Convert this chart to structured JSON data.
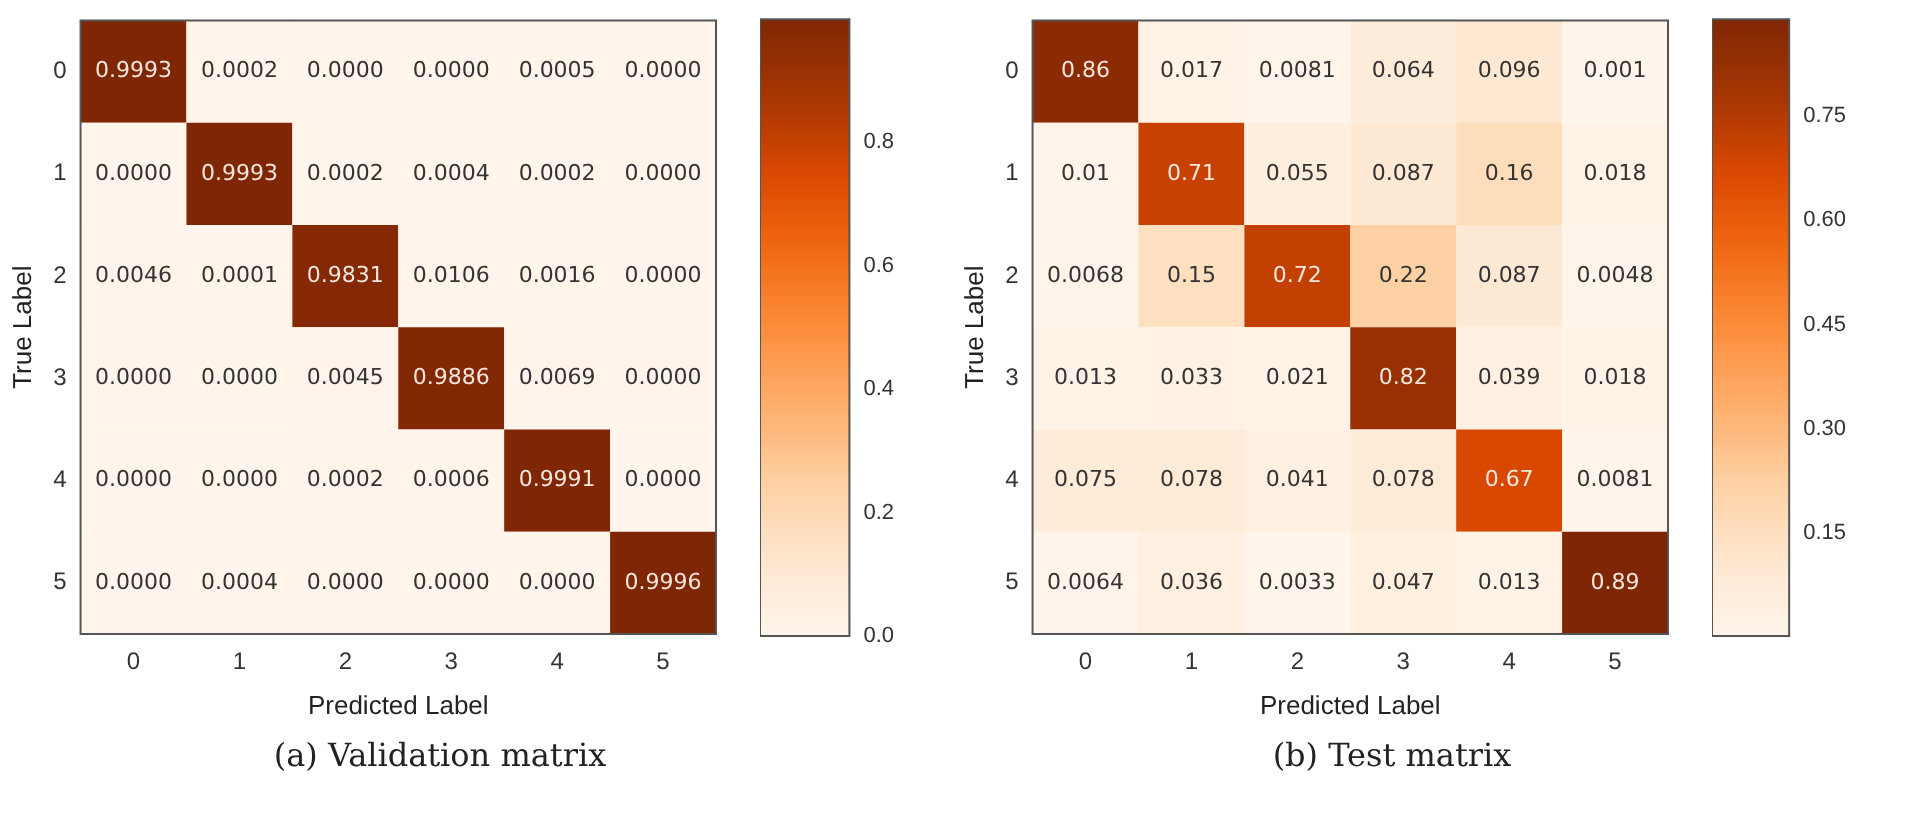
{
  "chart_data": [
    {
      "type": "heatmap",
      "xlabel": "Predicted Label",
      "ylabel": "True Label",
      "categories": [
        "0",
        "1",
        "2",
        "3",
        "4",
        "5"
      ],
      "y_categories": [
        "0",
        "1",
        "2",
        "3",
        "4",
        "5"
      ],
      "cells": [
        [
          0.9993,
          0.0002,
          0.0,
          0.0,
          0.0005,
          0.0
        ],
        [
          0.0,
          0.9993,
          0.0002,
          0.0004,
          0.0002,
          0.0
        ],
        [
          0.0046,
          0.0001,
          0.9831,
          0.0106,
          0.0016,
          0.0
        ],
        [
          0.0,
          0.0,
          0.0045,
          0.9886,
          0.0069,
          0.0
        ],
        [
          0.0,
          0.0,
          0.0002,
          0.0006,
          0.9991,
          0.0
        ],
        [
          0.0,
          0.0004,
          0.0,
          0.0,
          0.0,
          0.9996
        ]
      ],
      "cell_labels": [
        [
          "0.9993",
          "0.0002",
          "0.0000",
          "0.0000",
          "0.0005",
          "0.0000"
        ],
        [
          "0.0000",
          "0.9993",
          "0.0002",
          "0.0004",
          "0.0002",
          "0.0000"
        ],
        [
          "0.0046",
          "0.0001",
          "0.9831",
          "0.0106",
          "0.0016",
          "0.0000"
        ],
        [
          "0.0000",
          "0.0000",
          "0.0045",
          "0.9886",
          "0.0069",
          "0.0000"
        ],
        [
          "0.0000",
          "0.0000",
          "0.0002",
          "0.0006",
          "0.9991",
          "0.0000"
        ],
        [
          "0.0000",
          "0.0004",
          "0.0000",
          "0.0000",
          "0.0000",
          "0.9996"
        ]
      ],
      "clim": [
        0,
        0.9996
      ],
      "cticks": [
        {
          "value": 0,
          "label": "0.0"
        },
        {
          "value": 0.2,
          "label": "0.2"
        },
        {
          "value": 0.4,
          "label": "0.4"
        },
        {
          "value": 0.6,
          "label": "0.6"
        },
        {
          "value": 0.8,
          "label": "0.8"
        }
      ],
      "annotations": [
        "(a) Validation matrix"
      ]
    },
    {
      "type": "heatmap",
      "xlabel": "Predicted Label",
      "ylabel": "True Label",
      "categories": [
        "0",
        "1",
        "2",
        "3",
        "4",
        "5"
      ],
      "y_categories": [
        "0",
        "1",
        "2",
        "3",
        "4",
        "5"
      ],
      "cells": [
        [
          0.86,
          0.017,
          0.0081,
          0.064,
          0.096,
          0.001
        ],
        [
          0.01,
          0.71,
          0.055,
          0.087,
          0.16,
          0.018
        ],
        [
          0.0068,
          0.15,
          0.72,
          0.22,
          0.087,
          0.0048
        ],
        [
          0.013,
          0.033,
          0.021,
          0.82,
          0.039,
          0.018
        ],
        [
          0.075,
          0.078,
          0.041,
          0.078,
          0.67,
          0.0081
        ],
        [
          0.0064,
          0.036,
          0.0033,
          0.047,
          0.013,
          0.89
        ]
      ],
      "data_labels": true,
      "clim": [
        0.001,
        0.89
      ],
      "cticks": [
        {
          "value": 0.15,
          "label": "0.15"
        },
        {
          "value": 0.3,
          "label": "0.30"
        },
        {
          "value": 0.45,
          "label": "0.45"
        },
        {
          "value": 0.6,
          "label": "0.60"
        },
        {
          "value": 0.75,
          "label": "0.75"
        }
      ],
      "annotations": [
        "(b) Test matrix"
      ]
    }
  ]
}
